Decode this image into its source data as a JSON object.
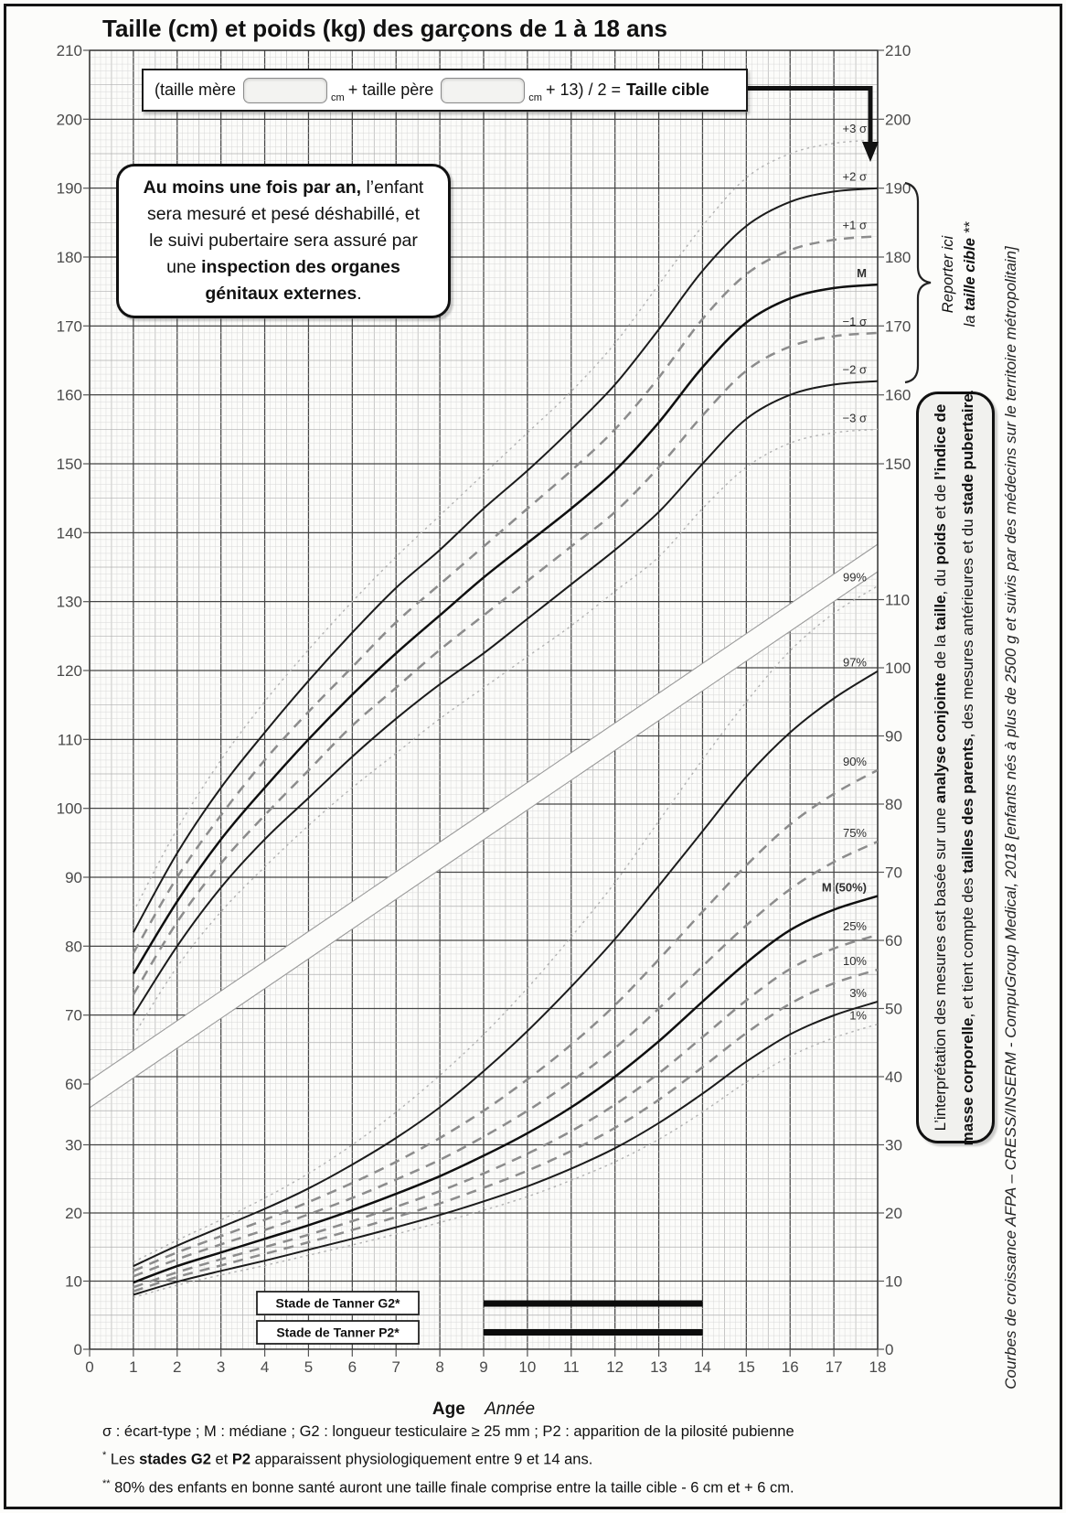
{
  "page": {
    "title": "Taille (cm) et poids (kg) des garçons de 1 à 18 ans"
  },
  "formula": {
    "part1": "(taille mère",
    "unit1": "cm",
    "part2": "+  taille père",
    "unit2": "cm",
    "part3": "+ 13) / 2 =",
    "result": "Taille cible",
    "mother_value": "",
    "father_value": ""
  },
  "note_box": {
    "lines": [
      [
        {
          "t": "Au moins une fois par an,",
          "b": true
        },
        {
          "t": " l’enfant",
          "b": false
        }
      ],
      [
        {
          "t": "sera mesuré et pesé déshabillé, et",
          "b": false
        }
      ],
      [
        {
          "t": "le suivi pubertaire sera assuré par",
          "b": false
        }
      ],
      [
        {
          "t": "une ",
          "b": false
        },
        {
          "t": "inspection des organes",
          "b": true
        }
      ],
      [
        {
          "t": "génitaux externes",
          "b": true
        },
        {
          "t": ".",
          "b": false
        }
      ]
    ]
  },
  "annotations": {
    "reporter_line1": "Reporter ici",
    "reporter_line2_pre": "la ",
    "reporter_line2_bold": "taille cible",
    "reporter_line2_suffix": " **"
  },
  "sidebar_box": {
    "line1": [
      {
        "t": "L’interprétation des mesures est basée sur une ",
        "b": false
      },
      {
        "t": "analyse conjointe",
        "b": true
      },
      {
        "t": " de la ",
        "b": false
      },
      {
        "t": "taille",
        "b": true
      },
      {
        "t": ", du ",
        "b": false
      },
      {
        "t": "poids",
        "b": true
      },
      {
        "t": " et de ",
        "b": false
      },
      {
        "t": "l’indice de",
        "b": true
      }
    ],
    "line2": [
      {
        "t": "masse corporelle",
        "b": true
      },
      {
        "t": ", et tient compte des ",
        "b": false
      },
      {
        "t": "tailles des parents",
        "b": true
      },
      {
        "t": ", des mesures antérieures et du ",
        "b": false
      },
      {
        "t": "stade pubertaire",
        "b": true
      },
      {
        "t": ".",
        "b": false
      }
    ]
  },
  "attribution": "Courbes de croissance  AFPA – CRESS/INSERM - CompuGroup Medical, 2018 [enfants nés à plus de 2500 g et suivis par des médecins sur le territoire métropolitain]",
  "axes": {
    "left_height": [
      210,
      200,
      190,
      180,
      170,
      160,
      150,
      140,
      130,
      120,
      110,
      100,
      90,
      80,
      70,
      60
    ],
    "left_weight": [
      30,
      20,
      10,
      0
    ],
    "right_height": [
      210,
      200,
      190,
      180,
      170,
      160,
      150
    ],
    "right_weight": [
      110,
      100,
      90,
      80,
      70,
      60,
      50,
      40,
      30,
      20,
      10,
      0
    ],
    "x_ticks": [
      0,
      1,
      2,
      3,
      4,
      5,
      6,
      7,
      8,
      9,
      10,
      11,
      12,
      13,
      14,
      15,
      16,
      17,
      18
    ],
    "x_label": "Age",
    "x_label_unit": "Année"
  },
  "tanner": {
    "g2_label": "Stade de Tanner G2*",
    "p2_label": "Stade de Tanner P2*",
    "bar_start_age": 9,
    "bar_end_age": 14
  },
  "footnotes": {
    "f1": "σ : écart-type ; M : médiane ; G2 : longueur testiculaire ≥ 25 mm ; P2 : apparition de la pilosité pubienne",
    "f2_marker": "*",
    "f2": [
      {
        "t": " Les ",
        "b": false
      },
      {
        "t": "stades G2",
        "b": true
      },
      {
        "t": " et ",
        "b": false
      },
      {
        "t": "P2",
        "b": true
      },
      {
        "t": " apparaissent physiologiquement entre 9 et 14 ans.",
        "b": false
      }
    ],
    "f3_marker": "**",
    "f3": " 80% des enfants en bonne santé auront une taille finale comprise entre la taille cible - 6 cm et + 6 cm."
  },
  "colors": {
    "curve_solid": "#1b1b1b",
    "curve_dashed": "#8c8c8c",
    "curve_dotted": "#b2b2b2",
    "grid_major": "#454545",
    "grid_minor": "#d8d8d8",
    "tanner_bar": "#0c0c0c"
  },
  "chart_data": [
    {
      "type": "line",
      "title": "Taille (cm) et poids (kg) des garçons de 1 à 18 ans",
      "subtitle": "Courbe de taille (écarts-types)",
      "xlabel": "Age (Année)",
      "ylabel": "Taille (cm)",
      "x_range": [
        0,
        18
      ],
      "y_range": [
        60,
        210
      ],
      "grid": true,
      "legend_position": "curve-end-right",
      "x": [
        1,
        2,
        3,
        4,
        5,
        6,
        7,
        8,
        9,
        10,
        11,
        12,
        13,
        14,
        15,
        16,
        17,
        18
      ],
      "series": [
        {
          "name": "+3 σ",
          "style": "dotted",
          "values": [
            85,
            97,
            107,
            115.5,
            123,
            130,
            136.5,
            142.5,
            148.5,
            154.5,
            160.5,
            167.5,
            176,
            184.5,
            191.5,
            195,
            196.5,
            197
          ]
        },
        {
          "name": "+2 σ",
          "style": "solid",
          "values": [
            82,
            93.5,
            103,
            111,
            118.5,
            125.5,
            132,
            137.5,
            143.5,
            149,
            155,
            161.5,
            169.5,
            178,
            184.5,
            188,
            189.5,
            190
          ]
        },
        {
          "name": "+1 σ",
          "style": "dashed",
          "values": [
            79,
            90,
            99,
            107,
            114,
            120.5,
            127,
            132.5,
            138,
            143.5,
            149,
            155,
            162.5,
            171,
            177.5,
            181,
            182.5,
            183
          ]
        },
        {
          "name": "M",
          "style": "solid-bold",
          "values": [
            76,
            86.5,
            95.5,
            103,
            110,
            116.5,
            122.5,
            128,
            133.5,
            138.5,
            143.5,
            149,
            156,
            164,
            170.5,
            174,
            175.5,
            176
          ]
        },
        {
          "name": "−1 σ",
          "style": "dashed",
          "values": [
            73,
            83.5,
            92,
            99,
            105.5,
            112,
            117.5,
            123,
            128,
            133,
            138,
            143,
            149.5,
            157,
            163.5,
            167,
            168.5,
            169
          ]
        },
        {
          "name": "−2 σ",
          "style": "solid",
          "values": [
            70,
            80,
            88.5,
            95.5,
            101.5,
            107.5,
            113,
            118,
            122.5,
            127.5,
            132.5,
            137.5,
            143,
            150,
            156.5,
            160,
            161.5,
            162
          ]
        },
        {
          "name": "−3 σ",
          "style": "dotted",
          "values": [
            67,
            77,
            85,
            91.5,
            97.5,
            103,
            108,
            113,
            117.5,
            122,
            126.5,
            131.5,
            136.5,
            143.5,
            149.5,
            153,
            154.5,
            155
          ]
        }
      ]
    },
    {
      "type": "line",
      "subtitle": "Courbe de poids (percentiles)",
      "xlabel": "Age (Année)",
      "ylabel": "Poids (kg)",
      "x_range": [
        0,
        18
      ],
      "y_range": [
        0,
        115
      ],
      "grid": true,
      "legend_position": "curve-end-right",
      "x": [
        1,
        2,
        3,
        4,
        5,
        6,
        7,
        8,
        9,
        10,
        11,
        12,
        13,
        14,
        15,
        16,
        17,
        18
      ],
      "series": [
        {
          "name": "99%",
          "style": "dotted",
          "values": [
            12.8,
            16,
            19,
            22.2,
            25.8,
            30,
            34.8,
            40.2,
            46.2,
            53,
            60.5,
            68.5,
            77.5,
            86.5,
            95,
            102.5,
            108,
            112
          ]
        },
        {
          "name": "97%",
          "style": "solid",
          "values": [
            12.2,
            15.2,
            17.9,
            20.6,
            23.6,
            27.1,
            31,
            35.5,
            40.8,
            46.7,
            53.2,
            60.2,
            68,
            76,
            84,
            90.5,
            95.5,
            99.5
          ]
        },
        {
          "name": "90%",
          "style": "dashed",
          "values": [
            11.5,
            14.2,
            16.6,
            19,
            21.6,
            24.4,
            27.5,
            31,
            35,
            39.6,
            44.7,
            50.5,
            57.2,
            64.2,
            71,
            77,
            81.5,
            85
          ]
        },
        {
          "name": "75%",
          "style": "dashed",
          "values": [
            10.7,
            13.2,
            15.4,
            17.5,
            19.8,
            22.2,
            24.9,
            27.8,
            31.2,
            35,
            39.3,
            44.2,
            50,
            56.2,
            62.2,
            67.5,
            71.5,
            74.5
          ]
        },
        {
          "name": "M (50%)",
          "style": "solid-bold",
          "values": [
            9.8,
            12.2,
            14.2,
            16.2,
            18.2,
            20.4,
            22.8,
            25.4,
            28.4,
            31.7,
            35.5,
            40,
            45.2,
            51,
            56.7,
            61.5,
            64.5,
            66.5
          ]
        },
        {
          "name": "25%",
          "style": "dashed",
          "values": [
            9.1,
            11.3,
            13.2,
            15,
            16.8,
            18.8,
            20.9,
            23.2,
            25.8,
            28.7,
            32,
            35.9,
            40.5,
            45.8,
            51.2,
            55.8,
            58.8,
            60.8
          ]
        },
        {
          "name": "10%",
          "style": "dashed",
          "values": [
            8.5,
            10.6,
            12.3,
            14,
            15.7,
            17.5,
            19.4,
            21.4,
            23.7,
            26.2,
            29.1,
            32.5,
            36.6,
            41.4,
            46.4,
            50.7,
            53.7,
            55.7
          ]
        },
        {
          "name": "3%",
          "style": "solid",
          "values": [
            8,
            9.9,
            11.5,
            13,
            14.6,
            16.2,
            17.9,
            19.7,
            21.7,
            23.9,
            26.5,
            29.5,
            33.2,
            37.5,
            42.2,
            46.2,
            49,
            51
          ]
        },
        {
          "name": "1%",
          "style": "dotted",
          "values": [
            7.6,
            9.4,
            10.9,
            12.3,
            13.8,
            15.3,
            16.9,
            18.6,
            20.4,
            22.4,
            24.8,
            27.5,
            30.8,
            34.8,
            39.2,
            43,
            45.7,
            47.7
          ]
        }
      ]
    }
  ]
}
